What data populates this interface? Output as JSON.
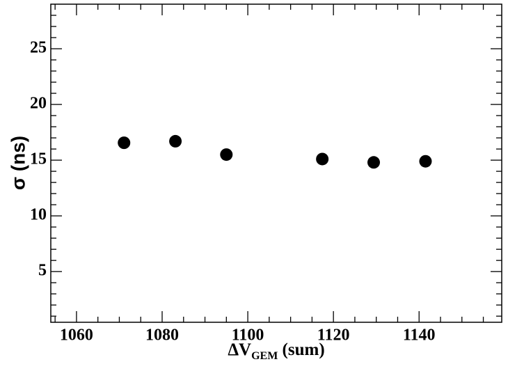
{
  "chart_data": {
    "type": "scatter",
    "xlabel_parts": [
      "ΔV",
      "GEM",
      " (sum)"
    ],
    "ylabel": "σ (ns)",
    "x": [
      1071.1,
      1083.1,
      1095.0,
      1117.4,
      1129.4,
      1141.5
    ],
    "values": [
      16.56,
      16.7,
      15.5,
      15.1,
      14.8,
      14.9
    ],
    "color": "#000000",
    "xlim": [
      1054,
      1159.3
    ],
    "ylim": [
      0.45,
      29
    ],
    "xticks": [
      1060,
      1080,
      1100,
      1120,
      1140
    ],
    "yticks": [
      5,
      10,
      15,
      20,
      25
    ],
    "xminorticks": [
      1055,
      1065,
      1070,
      1075,
      1085,
      1090,
      1095,
      1105,
      1110,
      1115,
      1125,
      1130,
      1135,
      1145,
      1150,
      1155
    ],
    "yminorticks": [
      1,
      2,
      3,
      4,
      6,
      7,
      8,
      9,
      11,
      12,
      13,
      14,
      16,
      17,
      18,
      19,
      21,
      22,
      23,
      24,
      26,
      27,
      28
    ],
    "grid": false
  }
}
